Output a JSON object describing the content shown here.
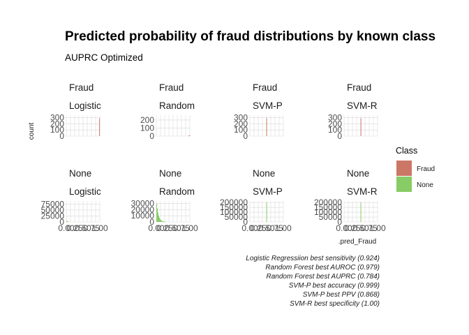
{
  "chart_data": {
    "type": "histogram-facet",
    "title": "Predicted probability of fraud distributions by known class",
    "subtitle": "AUPRC Optimized",
    "xlabel": ".pred_Fraud",
    "ylabel": "count",
    "legend": {
      "title": "Class",
      "position": "right",
      "entries": [
        {
          "label": "Fraud",
          "color": "#cc7766"
        },
        {
          "label": "None",
          "color": "#88cc66"
        }
      ]
    },
    "x_ticks": [
      "0.00",
      "0.25",
      "0.50",
      "0.75",
      "1.00"
    ],
    "xlim": [
      0,
      1
    ],
    "panels": [
      {
        "class": "Fraud",
        "model": "Logistic",
        "y_ticks": [
          "0",
          "100",
          "200",
          "300"
        ],
        "ylim": [
          0,
          340
        ],
        "bins": [
          {
            "x": 0.99,
            "count": 290
          }
        ]
      },
      {
        "class": "Fraud",
        "model": "Random",
        "y_ticks": [
          "0",
          "100",
          "200"
        ],
        "ylim": [
          0,
          260
        ],
        "bins": [
          {
            "x": 0.97,
            "count": 5
          },
          {
            "x": 0.985,
            "count": 8
          },
          {
            "x": 0.995,
            "count": 10
          }
        ]
      },
      {
        "class": "Fraud",
        "model": "SVM-P",
        "y_ticks": [
          "0",
          "100",
          "200",
          "300"
        ],
        "ylim": [
          0,
          340
        ],
        "bins": [
          {
            "x": 0.5,
            "count": 290
          }
        ]
      },
      {
        "class": "Fraud",
        "model": "SVM-R",
        "y_ticks": [
          "0",
          "100",
          "200",
          "300"
        ],
        "ylim": [
          0,
          340
        ],
        "bins": [
          {
            "x": 0.5,
            "count": 290
          }
        ]
      },
      {
        "class": "None",
        "model": "Logistic",
        "y_ticks": [
          "0",
          "25000",
          "50000",
          "75000"
        ],
        "ylim": [
          0,
          88000
        ],
        "bins": [
          {
            "x": 0.01,
            "count": 5000
          },
          {
            "x": 0.03,
            "count": 3000
          },
          {
            "x": 0.06,
            "count": 2000
          }
        ]
      },
      {
        "class": "None",
        "model": "Random",
        "y_ticks": [
          "0",
          "10000",
          "20000",
          "30000"
        ],
        "ylim": [
          0,
          34000
        ],
        "bins": [
          {
            "x": 0.01,
            "count": 30000
          },
          {
            "x": 0.03,
            "count": 22000
          },
          {
            "x": 0.05,
            "count": 15000
          },
          {
            "x": 0.07,
            "count": 10000
          },
          {
            "x": 0.09,
            "count": 7000
          },
          {
            "x": 0.11,
            "count": 5000
          },
          {
            "x": 0.13,
            "count": 3500
          },
          {
            "x": 0.15,
            "count": 2500
          },
          {
            "x": 0.17,
            "count": 1800
          },
          {
            "x": 0.19,
            "count": 1200
          },
          {
            "x": 0.21,
            "count": 900
          },
          {
            "x": 0.23,
            "count": 600
          },
          {
            "x": 0.25,
            "count": 400
          },
          {
            "x": 0.27,
            "count": 250
          }
        ]
      },
      {
        "class": "None",
        "model": "SVM-P",
        "y_ticks": [
          "0",
          "50000",
          "100000",
          "150000",
          "200000"
        ],
        "ylim": [
          0,
          215000
        ],
        "bins": [
          {
            "x": 0.5,
            "count": 200000
          }
        ]
      },
      {
        "class": "None",
        "model": "SVM-R",
        "y_ticks": [
          "0",
          "50000",
          "100000",
          "150000",
          "200000"
        ],
        "ylim": [
          0,
          215000
        ],
        "bins": [
          {
            "x": 0.5,
            "count": 200000
          }
        ]
      }
    ],
    "annotations": [
      "Logistic Regressiion best sensitivity (0.924)",
      "Random Forest best AUROC (0.979)",
      "Random Forest best AUPRC (0.784)",
      "SVM-P best accuracy (0.999)",
      "SVM-P best PPV (0.868)",
      "SVM-R best specificity (1.00)"
    ]
  }
}
